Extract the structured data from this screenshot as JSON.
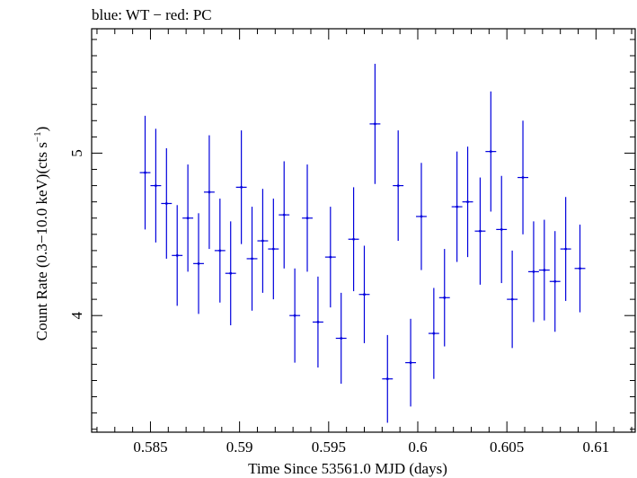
{
  "chart_data": {
    "type": "scatter",
    "title": "blue: WT − red: PC",
    "xlabel": "Time Since 53561.0 MJD (days)",
    "ylabel_main": "Count Rate (0.3−10.0 keV)(cts s",
    "ylabel_sup": "−1",
    "ylabel_close": ")",
    "xlim": [
      0.5817,
      0.6122
    ],
    "ylim": [
      3.2819,
      5.7659
    ],
    "xticks": [
      0.585,
      0.59,
      0.595,
      0.6,
      0.605,
      0.61
    ],
    "xtick_labels": [
      "0.585",
      "0.59",
      "0.595",
      "0.6",
      "0.605",
      "0.61"
    ],
    "yticks": [
      4,
      5
    ],
    "ytick_labels": [
      "4",
      "5"
    ],
    "grid": false,
    "series": [
      {
        "color": "#0000dd",
        "x_half_width": 0.0003,
        "points": [
          {
            "x": 0.5847,
            "y": 4.88,
            "yerr": 0.35
          },
          {
            "x": 0.5853,
            "y": 4.8,
            "yerr": 0.35
          },
          {
            "x": 0.5859,
            "y": 4.69,
            "yerr": 0.34
          },
          {
            "x": 0.5865,
            "y": 4.37,
            "yerr": 0.31
          },
          {
            "x": 0.5871,
            "y": 4.6,
            "yerr": 0.33
          },
          {
            "x": 0.5877,
            "y": 4.32,
            "yerr": 0.31
          },
          {
            "x": 0.5883,
            "y": 4.76,
            "yerr": 0.35
          },
          {
            "x": 0.5889,
            "y": 4.4,
            "yerr": 0.32
          },
          {
            "x": 0.5895,
            "y": 4.26,
            "yerr": 0.32
          },
          {
            "x": 0.5901,
            "y": 4.79,
            "yerr": 0.35
          },
          {
            "x": 0.5907,
            "y": 4.35,
            "yerr": 0.32
          },
          {
            "x": 0.5913,
            "y": 4.46,
            "yerr": 0.32
          },
          {
            "x": 0.5919,
            "y": 4.41,
            "yerr": 0.31
          },
          {
            "x": 0.5925,
            "y": 4.62,
            "yerr": 0.33
          },
          {
            "x": 0.5931,
            "y": 4.0,
            "yerr": 0.29
          },
          {
            "x": 0.5938,
            "y": 4.6,
            "yerr": 0.33
          },
          {
            "x": 0.5944,
            "y": 3.96,
            "yerr": 0.28
          },
          {
            "x": 0.5951,
            "y": 4.36,
            "yerr": 0.31
          },
          {
            "x": 0.5957,
            "y": 3.86,
            "yerr": 0.28
          },
          {
            "x": 0.5964,
            "y": 4.47,
            "yerr": 0.32
          },
          {
            "x": 0.597,
            "y": 4.13,
            "yerr": 0.3
          },
          {
            "x": 0.5976,
            "y": 5.18,
            "yerr": 0.37
          },
          {
            "x": 0.5983,
            "y": 3.61,
            "yerr": 0.27
          },
          {
            "x": 0.5989,
            "y": 4.8,
            "yerr": 0.34
          },
          {
            "x": 0.5996,
            "y": 3.71,
            "yerr": 0.27
          },
          {
            "x": 0.6002,
            "y": 4.61,
            "yerr": 0.33
          },
          {
            "x": 0.6009,
            "y": 3.89,
            "yerr": 0.28
          },
          {
            "x": 0.6015,
            "y": 4.11,
            "yerr": 0.3
          },
          {
            "x": 0.6022,
            "y": 4.67,
            "yerr": 0.34
          },
          {
            "x": 0.6028,
            "y": 4.7,
            "yerr": 0.34
          },
          {
            "x": 0.6035,
            "y": 4.52,
            "yerr": 0.33
          },
          {
            "x": 0.6041,
            "y": 5.01,
            "yerr": 0.37
          },
          {
            "x": 0.6047,
            "y": 4.53,
            "yerr": 0.33
          },
          {
            "x": 0.6053,
            "y": 4.1,
            "yerr": 0.3
          },
          {
            "x": 0.6059,
            "y": 4.85,
            "yerr": 0.35
          },
          {
            "x": 0.6065,
            "y": 4.27,
            "yerr": 0.31
          },
          {
            "x": 0.6071,
            "y": 4.28,
            "yerr": 0.31
          },
          {
            "x": 0.6077,
            "y": 4.21,
            "yerr": 0.31
          },
          {
            "x": 0.6083,
            "y": 4.41,
            "yerr": 0.32
          },
          {
            "x": 0.6091,
            "y": 4.29,
            "yerr": 0.27
          }
        ]
      }
    ]
  }
}
